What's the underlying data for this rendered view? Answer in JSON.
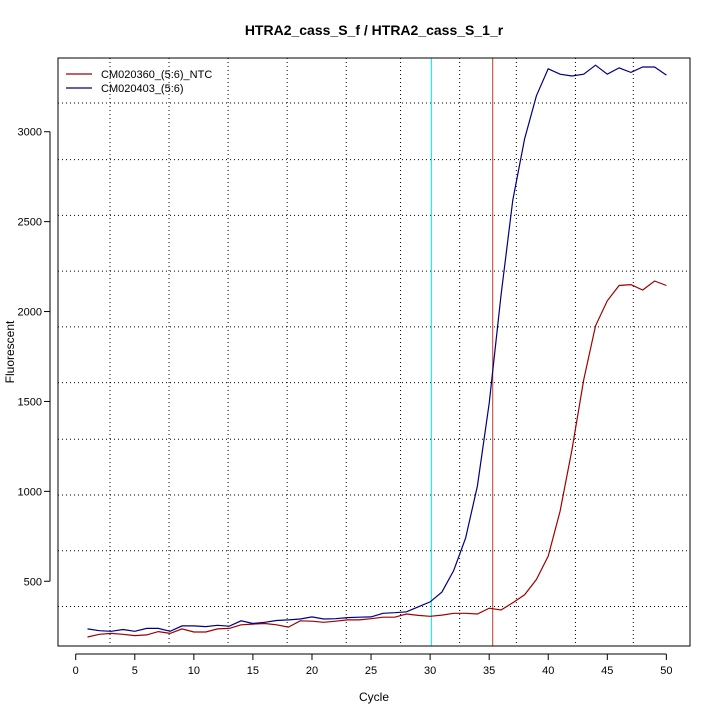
{
  "chart_data": {
    "type": "line",
    "title": "HTRA2_cass_S_f / HTRA2_cass_S_1_r",
    "xlabel": "Cycle",
    "ylabel": "Fluorescent",
    "xlim": [
      -1.5,
      52
    ],
    "ylim": [
      140,
      3410
    ],
    "x_ticks": [
      0,
      5,
      10,
      15,
      20,
      25,
      30,
      35,
      40,
      45,
      50
    ],
    "y_ticks": [
      500,
      1000,
      1500,
      2000,
      2500,
      3000
    ],
    "grid": true,
    "grid_x": [
      2.9,
      7.9,
      12.9,
      17.9,
      22.9,
      27.5,
      32.5,
      37.3,
      42.3,
      47.2
    ],
    "grid_y": [
      360,
      670,
      980,
      1290,
      1605,
      1915,
      2225,
      2535,
      2845,
      3160
    ],
    "legend_position": "top-left",
    "threshold_lines": [
      {
        "x": 30.1,
        "color": "#00e0e0"
      },
      {
        "x": 35.3,
        "color": "#c0392b"
      }
    ],
    "series": [
      {
        "name": "CM020360_(5:6)_NTC",
        "color": "#a00000",
        "x": [
          1,
          2,
          3,
          4,
          5,
          6,
          7,
          8,
          9,
          10,
          11,
          12,
          13,
          14,
          15,
          16,
          17,
          18,
          19,
          20,
          21,
          22,
          23,
          24,
          25,
          26,
          27,
          28,
          29,
          30,
          31,
          32,
          33,
          34,
          35,
          36,
          37,
          38,
          39,
          40,
          41,
          42,
          43,
          44,
          45,
          46,
          47,
          48,
          49,
          50
        ],
        "values": [
          190,
          205,
          210,
          205,
          198,
          202,
          220,
          210,
          235,
          218,
          218,
          235,
          238,
          258,
          262,
          265,
          258,
          245,
          280,
          278,
          272,
          278,
          285,
          285,
          292,
          300,
          300,
          318,
          310,
          305,
          312,
          322,
          322,
          318,
          350,
          340,
          380,
          425,
          510,
          640,
          890,
          1230,
          1620,
          1920,
          2060,
          2145,
          2150,
          2120,
          2170,
          2145
        ]
      },
      {
        "name": "CM020403_(5:6)",
        "color": "#00007f",
        "x": [
          1,
          2,
          3,
          4,
          5,
          6,
          7,
          8,
          9,
          10,
          11,
          12,
          13,
          14,
          15,
          16,
          17,
          18,
          19,
          20,
          21,
          22,
          23,
          24,
          25,
          26,
          27,
          28,
          29,
          30,
          31,
          32,
          33,
          34,
          35,
          36,
          37,
          38,
          39,
          40,
          41,
          42,
          43,
          44,
          45,
          46,
          47,
          48,
          49,
          50
        ],
        "values": [
          235,
          225,
          222,
          232,
          222,
          238,
          238,
          222,
          252,
          252,
          248,
          255,
          250,
          280,
          265,
          272,
          282,
          285,
          290,
          302,
          290,
          292,
          298,
          300,
          302,
          322,
          325,
          330,
          358,
          385,
          440,
          560,
          740,
          1030,
          1490,
          2090,
          2620,
          2960,
          3200,
          3350,
          3320,
          3310,
          3320,
          3370,
          3320,
          3355,
          3330,
          3360,
          3360,
          3315
        ]
      }
    ]
  }
}
